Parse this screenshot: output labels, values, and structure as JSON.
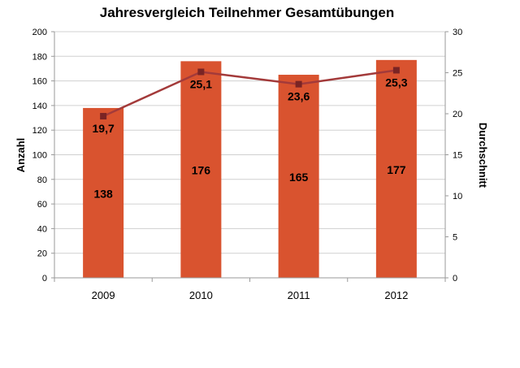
{
  "chart_data": {
    "type": "bar",
    "title": "Jahresvergleich Teilnehmer Gesamtübungen",
    "categories": [
      "2009",
      "2010",
      "2011",
      "2012"
    ],
    "series": [
      {
        "values": [
          138,
          176,
          165,
          177
        ],
        "axis": "left",
        "kind": "bar",
        "color": "#d9532f"
      },
      {
        "values": [
          19.7,
          25.1,
          23.6,
          25.3
        ],
        "axis": "right",
        "kind": "line",
        "color": "#a33a3a"
      }
    ],
    "bar_labels": [
      "138",
      "176",
      "165",
      "177"
    ],
    "line_labels": [
      "19,7",
      "25,1",
      "23,6",
      "25,3"
    ],
    "ylabel": "Anzahl",
    "y2label": "Durchschnitt",
    "ylim": [
      0,
      200
    ],
    "y2lim": [
      0,
      30
    ],
    "yticks": [
      "0",
      "20",
      "40",
      "60",
      "80",
      "100",
      "120",
      "140",
      "160",
      "180",
      "200"
    ],
    "y2ticks": [
      "0",
      "5",
      "10",
      "15",
      "20",
      "25",
      "30"
    ],
    "grid": true,
    "colors": {
      "bar": "#d9532f",
      "line": "#a33a3a",
      "grid": "#d0d0d0",
      "axis": "#9a9a9a"
    }
  }
}
